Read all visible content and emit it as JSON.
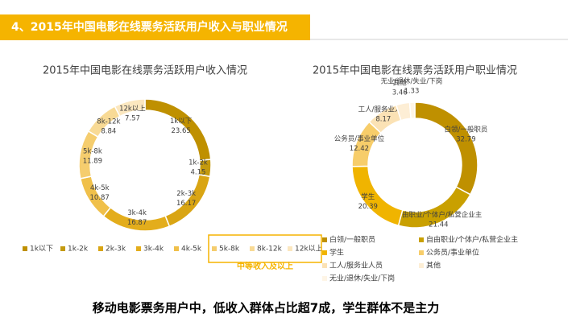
{
  "header": {
    "title": "4、2015年中国电影在线票务活跃用户收入与职业情况"
  },
  "chart_data": [
    {
      "type": "donut",
      "title": "2015年中国电影在线票务活跃用户收入情况",
      "categories": [
        "1k以下",
        "1k-2k",
        "2k-3k",
        "3k-4k",
        "4k-5k",
        "5k-8k",
        "8k-12k",
        "12k以上"
      ],
      "values": [
        23.65,
        4.15,
        16.17,
        16.87,
        10.87,
        11.89,
        8.84,
        7.57
      ],
      "colors": [
        "#bf9000",
        "#c49a0e",
        "#d9a514",
        "#e3ad1c",
        "#f0c04a",
        "#f5cd6e",
        "#f8da95",
        "#fbe7bf"
      ],
      "annotation": "中等收入及以上"
    },
    {
      "type": "donut",
      "title": "2015年中国电影在线票务活跃用户职业情况",
      "categories": [
        "白领/一般职员",
        "自由职业/个体户/私营企业主",
        "学生",
        "公务员/事业单位",
        "工人/服务业人员",
        "其他",
        "无业/退休/失业/下岗"
      ],
      "values": [
        32.79,
        21.44,
        20.39,
        12.42,
        8.17,
        3.46,
        1.33
      ],
      "colors": [
        "#bf9000",
        "#c9a000",
        "#f0b400",
        "#f7cd6a",
        "#fbe2b5",
        "#fdeed5",
        "#fef5e6"
      ]
    }
  ],
  "conclusion": "移动电影票务用户中，低收入群体占比超7成，学生群体不是主力"
}
